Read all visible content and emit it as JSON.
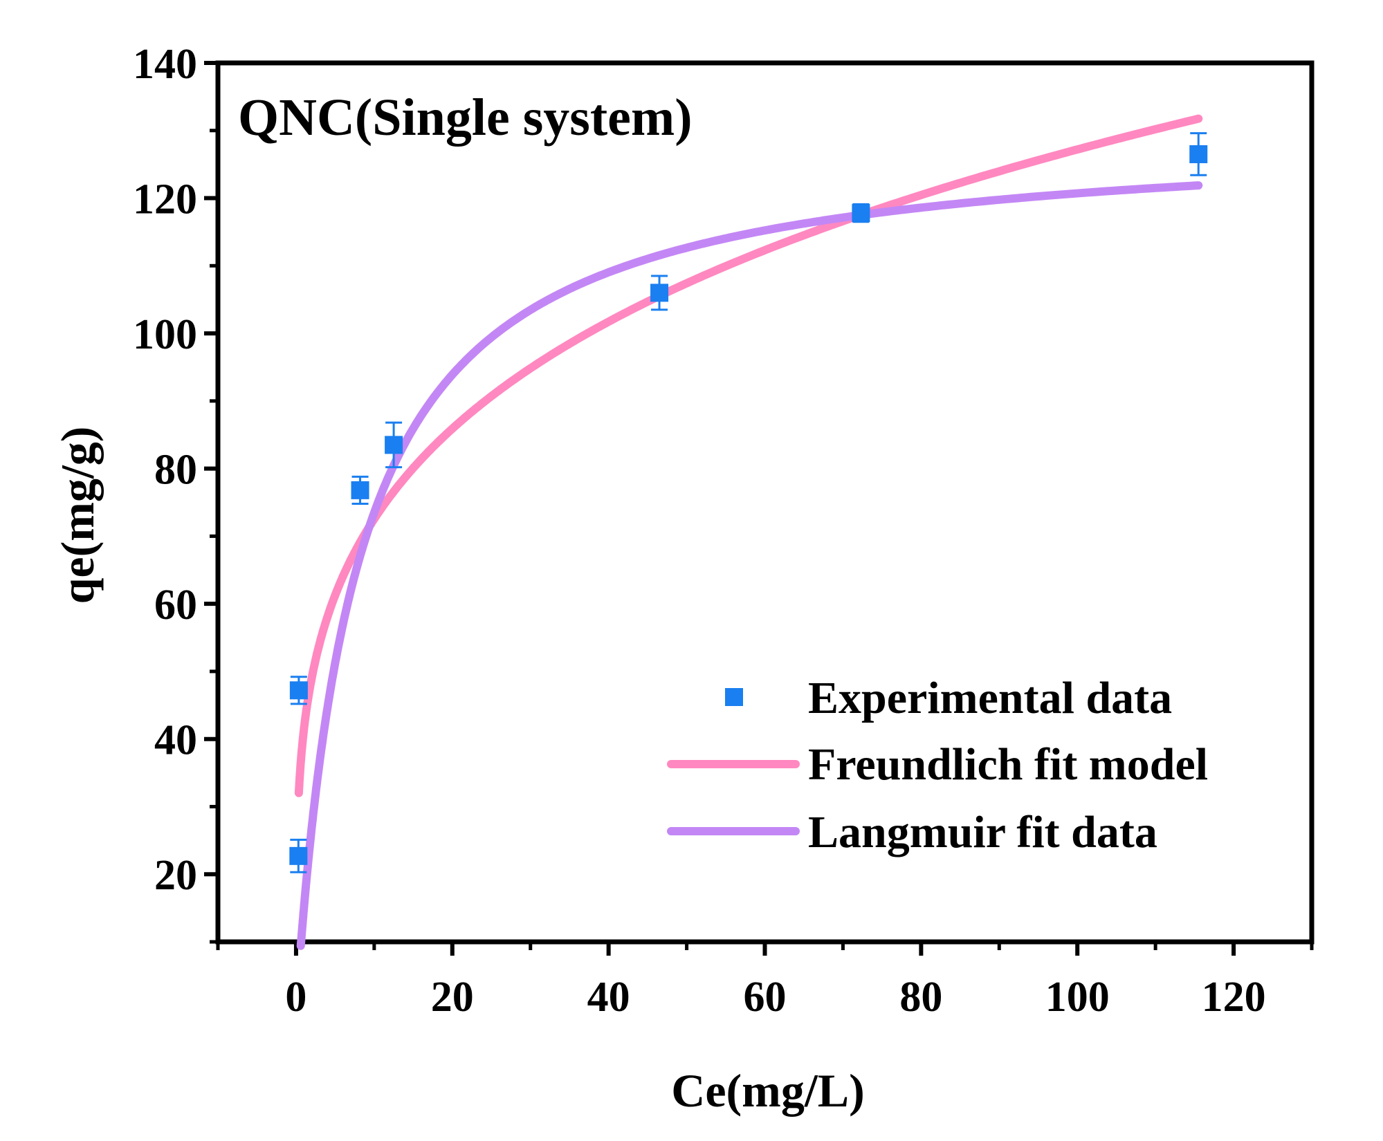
{
  "chart_data": {
    "type": "scatter",
    "title": "QNC(Single system)",
    "xlabel": "Ce(mg/L)",
    "ylabel": "qe(mg/g)",
    "xlim": [
      -10,
      130
    ],
    "ylim": [
      10,
      140
    ],
    "xticks": [
      0,
      20,
      40,
      60,
      80,
      100,
      120
    ],
    "yticks": [
      20,
      40,
      60,
      80,
      100,
      120,
      140
    ],
    "grid": false,
    "legend_position": "lower-right",
    "experimental": {
      "name": "Experimental data",
      "color": "#1a7ff0",
      "x": [
        0.3,
        0.35,
        8.2,
        12.5,
        46.5,
        72.3,
        115.5
      ],
      "y": [
        22.7,
        47.2,
        76.8,
        83.5,
        106.0,
        117.8,
        126.5
      ],
      "yerr": [
        2.4,
        2.0,
        2.0,
        3.3,
        2.5,
        1.3,
        3.1
      ]
    },
    "freundlich": {
      "name": "Freundlich fit model",
      "color": "#ff88c0",
      "K": 41.37,
      "n": 4.1,
      "x_range": [
        0.35,
        115.5
      ]
    },
    "langmuir": {
      "name": "Langmuir fit data",
      "color": "#c387f5",
      "qmax": 130,
      "KL": 0.13,
      "x_range": [
        0.6,
        115.5
      ]
    }
  }
}
